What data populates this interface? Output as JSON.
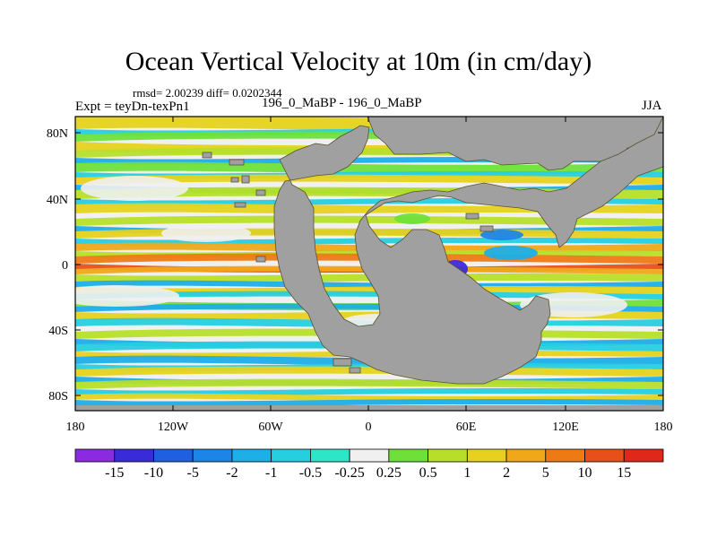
{
  "title": "Ocean Vertical Velocity at 10m (in cm/day)",
  "stats": "rmsd= 2.00239 diff= 0.0202344",
  "expt": "Expt = teyDn-texPn1",
  "subtitle": "196_0_MaBP - 196_0_MaBP",
  "season": "JJA",
  "lat_labels": [
    "80N",
    "40N",
    "0",
    "40S",
    "80S"
  ],
  "lon_labels": [
    "180",
    "120W",
    "60W",
    "0",
    "60E",
    "120E",
    "180"
  ],
  "colorbar": {
    "labels": [
      "-15",
      "-10",
      "-5",
      "-2",
      "-1",
      "-0.5",
      "-0.25",
      "0.25",
      "0.5",
      "1",
      "2",
      "5",
      "10",
      "15"
    ],
    "colors": [
      "#8a2be2",
      "#3a2bd8",
      "#1f5fe0",
      "#1c86e8",
      "#1eaee8",
      "#26cfe0",
      "#2ee5c8",
      "#f0f0f0",
      "#6fe03a",
      "#b7df2a",
      "#e6d21e",
      "#f0a81a",
      "#ee7a16",
      "#e8501a",
      "#e0281a"
    ]
  },
  "colors": {
    "land": "#a0a0a0",
    "background_ocean": "#f0f0f0"
  }
}
